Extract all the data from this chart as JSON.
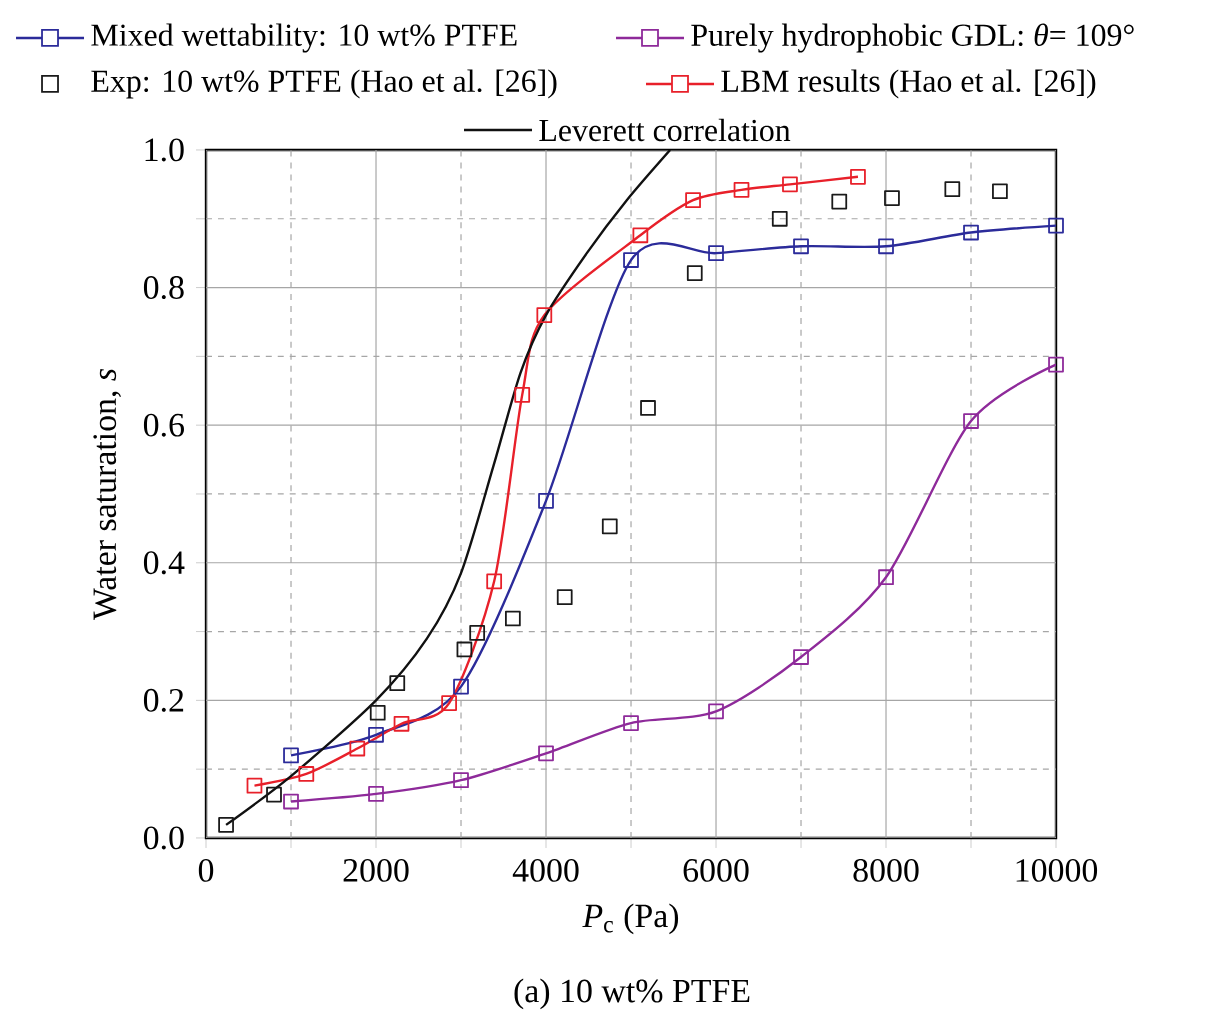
{
  "chart_data": {
    "type": "line",
    "title": "(a) 10 wt% PTFE",
    "xlabel": "*P*$_{c}$ (Pa)",
    "ylabel": "Water saturation, *s*",
    "xlim": [
      0,
      10000
    ],
    "ylim": [
      0,
      1.0
    ],
    "xticks": [
      0,
      {
        "value": 1000,
        "label": null
      },
      2000,
      {
        "value": 3000,
        "label": null
      },
      4000,
      {
        "value": 5000,
        "label": null
      },
      6000,
      {
        "value": 7000,
        "label": null
      },
      8000,
      {
        "value": 9000,
        "label": null
      },
      10000
    ],
    "yticks": [
      {
        "value": 0,
        "label": "0.0"
      },
      {
        "value": 0.1,
        "label": null
      },
      {
        "value": 0.2,
        "label": "0.2"
      },
      {
        "value": 0.3,
        "label": null
      },
      {
        "value": 0.4,
        "label": "0.4"
      },
      {
        "value": 0.5,
        "label": null
      },
      {
        "value": 0.6,
        "label": "0.6"
      },
      {
        "value": 0.7,
        "label": null
      },
      {
        "value": 0.8,
        "label": "0.8"
      },
      {
        "value": 0.9,
        "label": null
      },
      {
        "value": 1.0,
        "label": "1.0"
      }
    ],
    "grid": true,
    "legend": "top",
    "series": [
      {
        "name": "Mixed wettability: 10 wt% PTFE",
        "color": "#2b2b9a",
        "marker": "square",
        "x": [
          1000,
          2000,
          3000,
          4000,
          5000,
          6000,
          7000,
          8000,
          9000,
          10000
        ],
        "values": [
          0.12,
          0.15,
          0.22,
          0.49,
          0.84,
          0.85,
          0.86,
          0.86,
          0.88,
          0.89
        ]
      },
      {
        "name": "Purely hydrophobic GDL: *θ*= 109°",
        "color": "#8e2a9a",
        "marker": "square",
        "x": [
          1000,
          2000,
          3000,
          4000,
          5000,
          6000,
          7000,
          8000,
          9000,
          10000
        ],
        "values": [
          0.053,
          0.064,
          0.084,
          0.123,
          0.167,
          0.184,
          0.263,
          0.379,
          0.606,
          0.688
        ]
      },
      {
        "name": "Exp: 10 wt% PTFE (Hao et al. [26])",
        "color": "#1a1a1a",
        "type": "scatter",
        "marker": "square",
        "x": [
          236,
          800,
          2020,
          2250,
          3040,
          3190,
          3610,
          4220,
          4750,
          5200,
          5750,
          6750,
          7450,
          8070,
          8780,
          9340
        ],
        "values": [
          0.019,
          0.063,
          0.182,
          0.225,
          0.274,
          0.298,
          0.319,
          0.35,
          0.453,
          0.625,
          0.821,
          0.9,
          0.925,
          0.93,
          0.943,
          0.94
        ]
      },
      {
        "name": "LBM results (Hao et al. [26])",
        "color": "#e8202a",
        "marker": "square",
        "x": [
          570,
          1180,
          1780,
          2300,
          2860,
          3390,
          3720,
          3980,
          5110,
          5730,
          6300,
          6870,
          7670
        ],
        "values": [
          0.076,
          0.093,
          0.13,
          0.166,
          0.196,
          0.373,
          0.644,
          0.76,
          0.876,
          0.927,
          0.942,
          0.95,
          0.961
        ]
      },
      {
        "name": "Leverett correlation",
        "color": "#111111",
        "marker": "none",
        "x": [
          236,
          1000,
          2000,
          2600,
          3000,
          3380,
          3700,
          4000,
          4480,
          4950,
          5460
        ],
        "values": [
          0.019,
          0.09,
          0.2,
          0.29,
          0.385,
          0.54,
          0.676,
          0.76,
          0.85,
          0.927,
          1.0
        ]
      }
    ]
  }
}
